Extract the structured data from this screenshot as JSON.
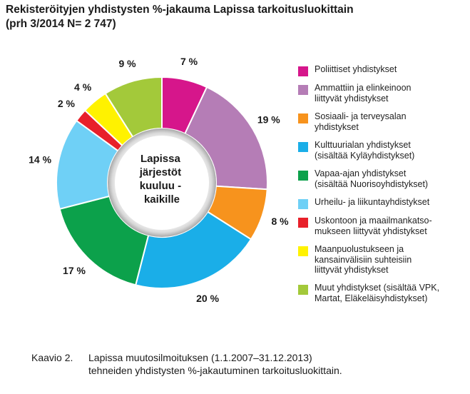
{
  "chart_data": {
    "type": "pie",
    "title_line1": "Rekisteröityjen yhdistysten %-jakauma Lapissa tarkoitusluokittain",
    "title_line2": "(prh 3/2014 N= 2 747)",
    "center_lines": [
      "Lapissa",
      "järjestöt",
      "kuuluu -",
      "kaikille"
    ],
    "legend_placement": "right",
    "slices": [
      {
        "label_lines": [
          "Poliittiset yhdistykset"
        ],
        "value": 7,
        "value_label": "7 %",
        "color": "#d6168b"
      },
      {
        "label_lines": [
          "Ammattiin ja elinkeinoon",
          "liittyvät yhdistykset"
        ],
        "value": 19,
        "value_label": "19 %",
        "color": "#b57db6"
      },
      {
        "label_lines": [
          "Sosiaali- ja terveysalan",
          "yhdistykset"
        ],
        "value": 8,
        "value_label": "8 %",
        "color": "#f7931d"
      },
      {
        "label_lines": [
          "Kulttuurialan yhdistykset",
          "(sisältää Kyläyhdistykset)"
        ],
        "value": 20,
        "value_label": "20 %",
        "color": "#1aaee8"
      },
      {
        "label_lines": [
          "Vapaa-ajan yhdistykset",
          "(sisältää Nuorisoyhdistykset)"
        ],
        "value": 17,
        "value_label": "17 %",
        "color": "#0ca14b"
      },
      {
        "label_lines": [
          "Urheilu- ja liikuntayhdistykset"
        ],
        "value": 14,
        "value_label": "14 %",
        "color": "#6fd0f6"
      },
      {
        "label_lines": [
          "Uskontoon ja maailmankatso-",
          "mukseen liittyvät yhdistykset"
        ],
        "value": 2,
        "value_label": "2 %",
        "color": "#e8202a"
      },
      {
        "label_lines": [
          "Maanpuolustukseen ja",
          "kansainvälisiin suhteisiin",
          "liittyvät yhdistykset"
        ],
        "value": 4,
        "value_label": "4 %",
        "color": "#fff200"
      },
      {
        "label_lines": [
          "Muut yhdistykset (sisältää VPK,",
          "Martat, Eläkeläisyhdistykset)"
        ],
        "value": 9,
        "value_label": "9 %",
        "color": "#a3c93a"
      }
    ]
  },
  "caption": {
    "label": "Kaavio 2.",
    "line1": "Lapissa muutosilmoituksen (1.1.2007–31.12.2013)",
    "line2": "tehneiden yhdistysten %-jakautuminen tarkoitusluokittain."
  }
}
